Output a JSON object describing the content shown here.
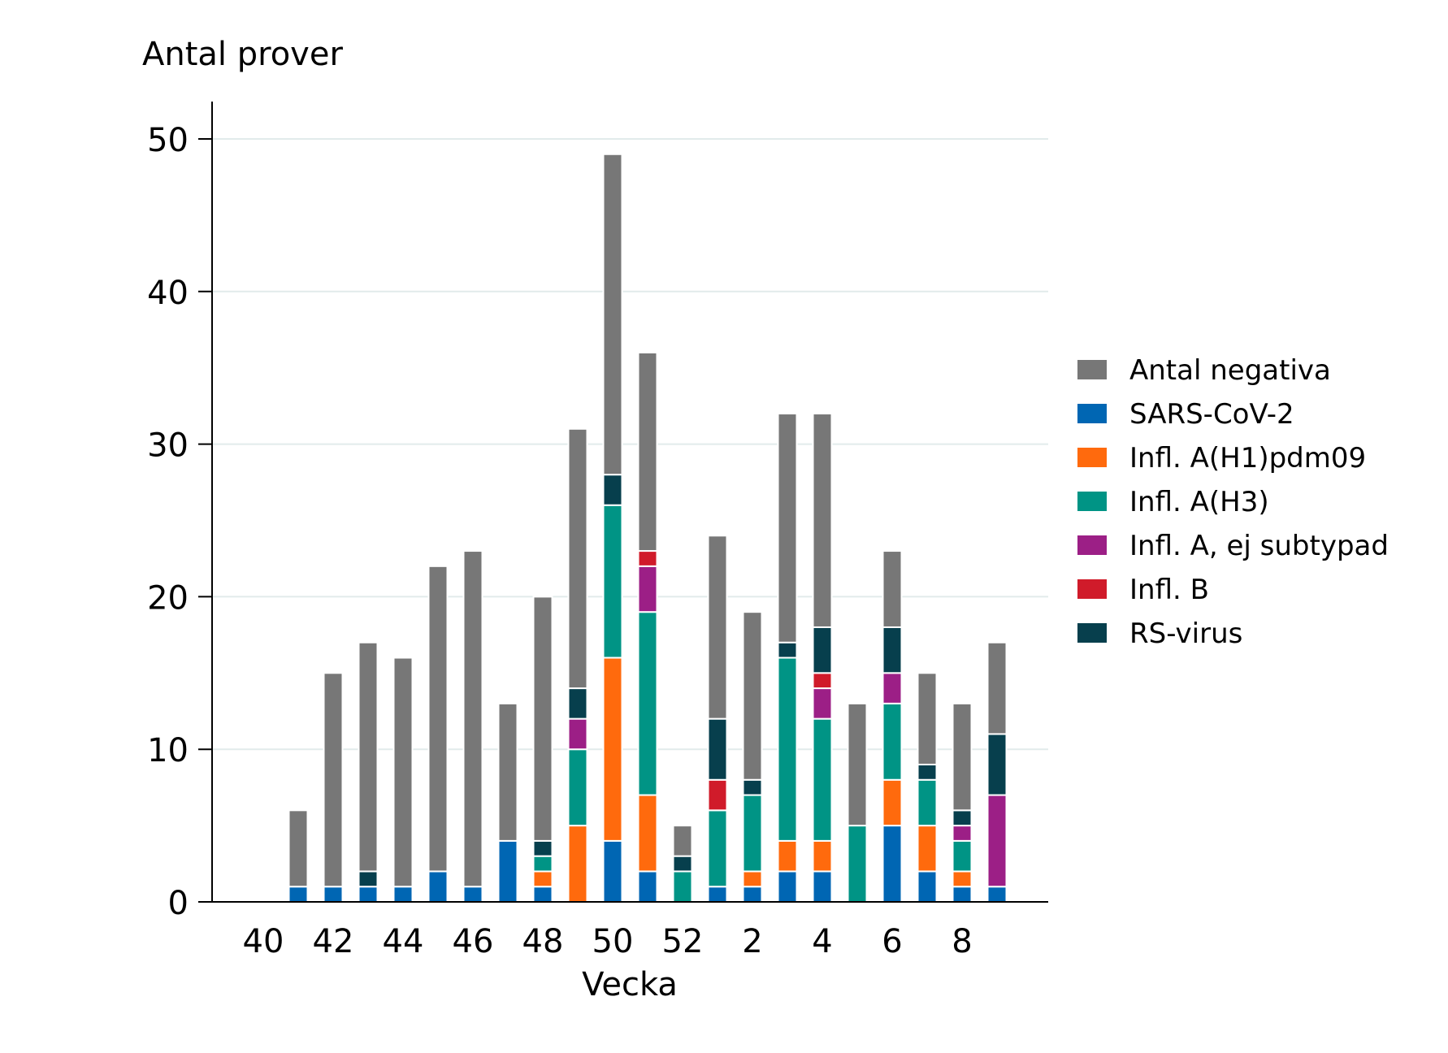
{
  "chart_data": {
    "type": "bar",
    "stacked": true,
    "ylabel": "Antal prover",
    "xlabel": "Vecka",
    "ylim": [
      0,
      52
    ],
    "yticks": [
      0,
      10,
      20,
      30,
      40,
      50
    ],
    "weeks": [
      40,
      41,
      42,
      43,
      44,
      45,
      46,
      47,
      48,
      49,
      50,
      51,
      52,
      1,
      2,
      3,
      4,
      5,
      6,
      7,
      8,
      9
    ],
    "xtick_labels": [
      "40",
      "42",
      "44",
      "46",
      "48",
      "50",
      "52",
      "2",
      "4",
      "6",
      "8"
    ],
    "legend_position": "right",
    "grid": true,
    "series": [
      {
        "name": "SARS-CoV-2",
        "color": "#0066b3",
        "values": [
          0,
          1,
          1,
          1,
          1,
          2,
          1,
          4,
          1,
          0,
          4,
          2,
          0,
          1,
          1,
          2,
          2,
          0,
          5,
          2,
          1,
          1
        ]
      },
      {
        "name": "Infl. A(H1)pdm09",
        "color": "#ff6a0d",
        "values": [
          0,
          0,
          0,
          0,
          0,
          0,
          0,
          0,
          1,
          5,
          12,
          5,
          0,
          0,
          1,
          2,
          2,
          0,
          3,
          3,
          1,
          0
        ]
      },
      {
        "name": "Infl. A(H3)",
        "color": "#009485",
        "values": [
          0,
          0,
          0,
          0,
          0,
          0,
          0,
          0,
          1,
          5,
          10,
          12,
          2,
          5,
          5,
          12,
          8,
          5,
          5,
          3,
          2,
          0
        ]
      },
      {
        "name": "Infl. A, ej subtypad",
        "color": "#9c1f86",
        "values": [
          0,
          0,
          0,
          0,
          0,
          0,
          0,
          0,
          0,
          2,
          0,
          3,
          0,
          0,
          0,
          0,
          2,
          0,
          2,
          0,
          1,
          6
        ]
      },
      {
        "name": "Infl. B",
        "color": "#d01b2a",
        "values": [
          0,
          0,
          0,
          0,
          0,
          0,
          0,
          0,
          0,
          0,
          0,
          1,
          0,
          2,
          0,
          0,
          1,
          0,
          0,
          0,
          0,
          0
        ]
      },
      {
        "name": "RS-virus",
        "color": "#073f4d",
        "values": [
          0,
          0,
          0,
          1,
          0,
          0,
          0,
          0,
          1,
          2,
          2,
          0,
          1,
          4,
          1,
          1,
          3,
          0,
          3,
          1,
          1,
          4
        ]
      },
      {
        "name": "Antal negativa",
        "color": "#777777",
        "values": [
          0,
          5,
          14,
          15,
          15,
          20,
          22,
          9,
          16,
          17,
          21,
          13,
          2,
          12,
          11,
          15,
          14,
          8,
          5,
          6,
          7,
          6
        ]
      }
    ],
    "legend_order": [
      "Antal negativa",
      "SARS-CoV-2",
      "Infl. A(H1)pdm09",
      "Infl. A(H3)",
      "Infl. A, ej subtypad",
      "Infl. B",
      "RS-virus"
    ]
  }
}
